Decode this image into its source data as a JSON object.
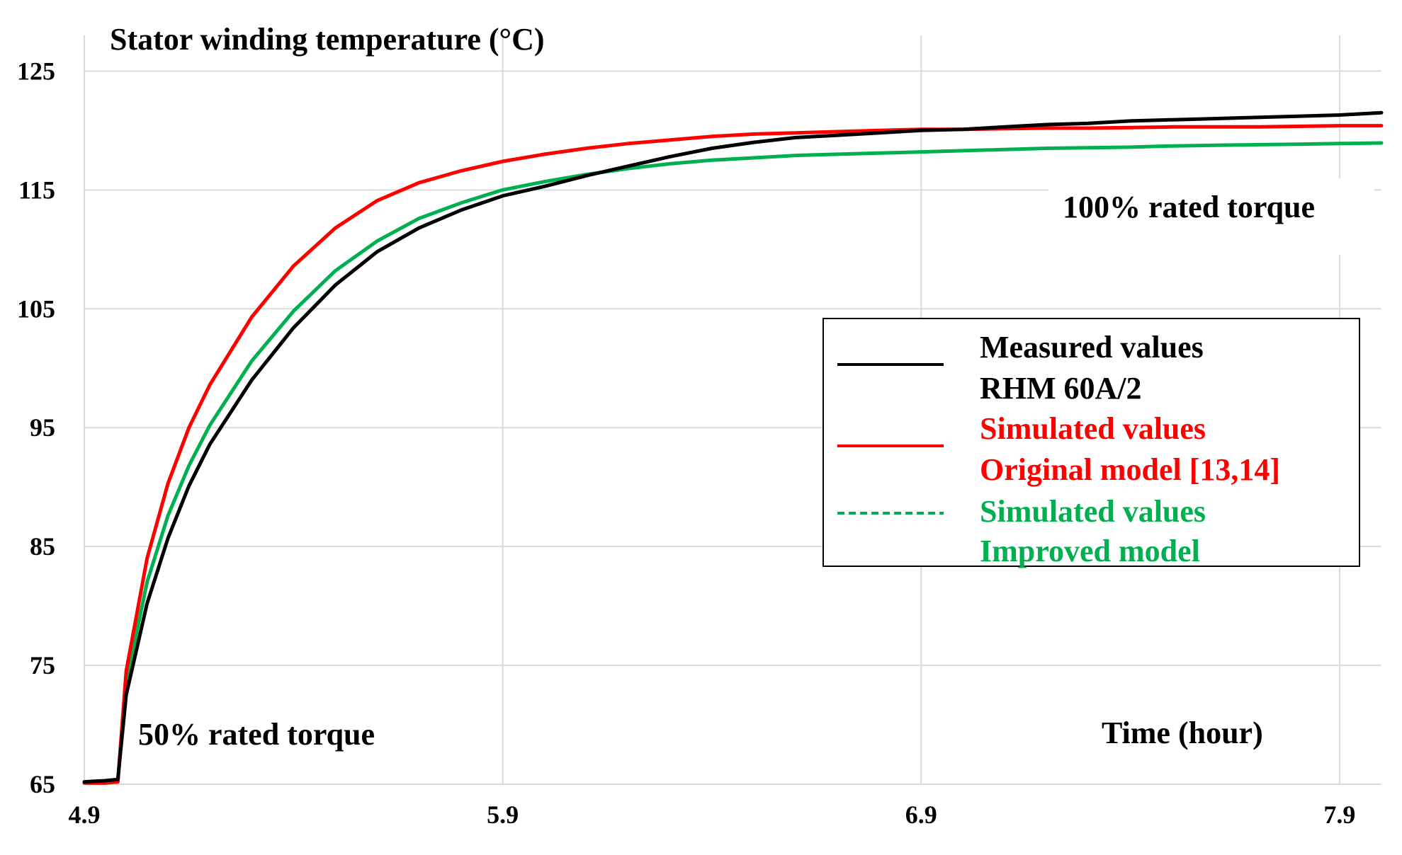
{
  "chart_data": {
    "type": "line",
    "title": "Stator winding temperature (°C)",
    "xlabel": "Time (hour)",
    "ylabel": "Stator winding temperature (°C)",
    "xlim": [
      4.9,
      8.0
    ],
    "ylim": [
      65,
      128
    ],
    "x_ticks": [
      {
        "value": 4.9,
        "label": "4.9"
      },
      {
        "value": 5.9,
        "label": "5.9"
      },
      {
        "value": 6.9,
        "label": "6.9"
      },
      {
        "value": 7.9,
        "label": "7.9"
      }
    ],
    "y_ticks": [
      {
        "value": 65,
        "label": "65"
      },
      {
        "value": 75,
        "label": "75"
      },
      {
        "value": 85,
        "label": "85"
      },
      {
        "value": 95,
        "label": "95"
      },
      {
        "value": 105,
        "label": "105"
      },
      {
        "value": 115,
        "label": "115"
      },
      {
        "value": 125,
        "label": "125"
      }
    ],
    "grid": "major x and y",
    "annotations": [
      {
        "text": "50% rated torque",
        "x": 5.03,
        "y": 68.5
      },
      {
        "text": "100% rated torque",
        "x": 7.25,
        "y": 114.7
      },
      {
        "text": "Time (hour)",
        "x": 7.4,
        "y": 68.5
      }
    ],
    "legend": {
      "position": "center-right",
      "entries": [
        {
          "line1": "Measured values",
          "line2": "RHM 60A/2",
          "color": "#000000",
          "style": "solid"
        },
        {
          "line1": "Simulated values",
          "line2": "Original model [13,14]",
          "color": "#ff0000",
          "style": "solid"
        },
        {
          "line1": "Simulated values",
          "line2": "Improved model",
          "color": "#00b050",
          "style": "dashed"
        }
      ]
    },
    "series": [
      {
        "name": "Measured values RHM 60A/2",
        "color": "#000000",
        "x": [
          4.9,
          4.95,
          4.98,
          5.0,
          5.05,
          5.1,
          5.15,
          5.2,
          5.3,
          5.4,
          5.5,
          5.6,
          5.7,
          5.8,
          5.9,
          6.0,
          6.1,
          6.2,
          6.3,
          6.4,
          6.5,
          6.6,
          6.7,
          6.8,
          6.9,
          7.0,
          7.1,
          7.2,
          7.3,
          7.4,
          7.5,
          7.6,
          7.7,
          7.8,
          7.9,
          8.0
        ],
        "y": [
          65.2,
          65.3,
          65.4,
          72.5,
          80.2,
          85.7,
          90.1,
          93.6,
          99.0,
          103.4,
          107.0,
          109.8,
          111.8,
          113.3,
          114.5,
          115.3,
          116.2,
          117.0,
          117.8,
          118.5,
          119.0,
          119.4,
          119.6,
          119.8,
          120.0,
          120.1,
          120.3,
          120.5,
          120.6,
          120.8,
          120.9,
          121.0,
          121.1,
          121.2,
          121.3,
          121.5
        ]
      },
      {
        "name": "Simulated values Original model [13,14]",
        "color": "#ff0000",
        "x": [
          4.9,
          4.95,
          4.98,
          5.0,
          5.05,
          5.1,
          5.15,
          5.2,
          5.3,
          5.4,
          5.5,
          5.6,
          5.7,
          5.8,
          5.9,
          6.0,
          6.1,
          6.2,
          6.3,
          6.4,
          6.5,
          6.6,
          6.7,
          6.8,
          6.9,
          7.0,
          7.1,
          7.2,
          7.3,
          7.4,
          7.5,
          7.6,
          7.7,
          7.8,
          7.9,
          8.0
        ],
        "y": [
          65.1,
          65.1,
          65.2,
          74.5,
          84.0,
          90.3,
          95.0,
          98.6,
          104.3,
          108.6,
          111.8,
          114.1,
          115.6,
          116.6,
          117.4,
          118.0,
          118.5,
          118.9,
          119.2,
          119.5,
          119.7,
          119.8,
          119.9,
          120.0,
          120.1,
          120.1,
          120.15,
          120.2,
          120.2,
          120.25,
          120.3,
          120.3,
          120.3,
          120.35,
          120.4,
          120.4
        ]
      },
      {
        "name": "Simulated values Improved model",
        "color": "#00b050",
        "x": [
          4.9,
          4.95,
          4.98,
          5.0,
          5.05,
          5.1,
          5.15,
          5.2,
          5.3,
          5.4,
          5.5,
          5.6,
          5.7,
          5.8,
          5.9,
          6.0,
          6.1,
          6.2,
          6.3,
          6.4,
          6.5,
          6.6,
          6.7,
          6.8,
          6.9,
          7.0,
          7.1,
          7.2,
          7.3,
          7.4,
          7.5,
          7.6,
          7.7,
          7.8,
          7.9,
          8.0
        ],
        "y": [
          65.1,
          65.1,
          65.2,
          73.5,
          82.0,
          87.6,
          91.8,
          95.2,
          100.6,
          104.8,
          108.2,
          110.7,
          112.6,
          113.9,
          115.0,
          115.7,
          116.3,
          116.8,
          117.2,
          117.5,
          117.7,
          117.9,
          118.0,
          118.1,
          118.2,
          118.3,
          118.4,
          118.5,
          118.55,
          118.6,
          118.7,
          118.75,
          118.8,
          118.85,
          118.9,
          118.95
        ]
      }
    ]
  }
}
